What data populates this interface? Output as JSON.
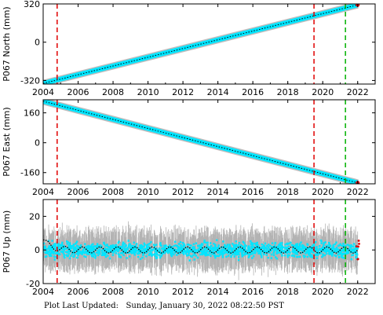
{
  "footer": {
    "label": "Plot Last Updated:",
    "timestamp": "Sunday, January 30, 2022 08:22:50 PST"
  },
  "chart_data": [
    {
      "type": "scatter",
      "ylabel": "P067 North (mm)",
      "xlim": [
        2004.0,
        2023.0
      ],
      "ylim": [
        -350,
        320
      ],
      "xticks": [
        2004,
        2006,
        2008,
        2010,
        2012,
        2014,
        2016,
        2018,
        2020,
        2022
      ],
      "yticks": [
        -320,
        0,
        320
      ],
      "grid": false,
      "series": [
        {
          "role": "daily positions",
          "color": "#00e5ff",
          "x": [
            2004.0,
            2022.0
          ],
          "y": [
            -345,
            312
          ]
        },
        {
          "role": "trend",
          "color": "#000000",
          "x": [
            2004.0,
            2022.0
          ],
          "y": [
            -345,
            312
          ]
        }
      ],
      "red_vlines": [
        2004.8,
        2019.5
      ],
      "green_vlines": [
        2021.3
      ]
    },
    {
      "type": "scatter",
      "ylabel": "P067 East (mm)",
      "xlim": [
        2004.0,
        2023.0
      ],
      "ylim": [
        -220,
        230
      ],
      "xticks": [
        2004,
        2006,
        2008,
        2010,
        2012,
        2014,
        2016,
        2018,
        2020,
        2022
      ],
      "yticks": [
        -160,
        0,
        160
      ],
      "grid": false,
      "series": [
        {
          "role": "daily positions",
          "color": "#00e5ff",
          "x": [
            2004.0,
            2022.0
          ],
          "y": [
            222,
            -215
          ]
        },
        {
          "role": "trend",
          "color": "#000000",
          "x": [
            2004.0,
            2022.0
          ],
          "y": [
            222,
            -215
          ]
        }
      ],
      "red_vlines": [
        2004.8,
        2019.5
      ],
      "green_vlines": [
        2021.3
      ]
    },
    {
      "type": "scatter",
      "ylabel": "P067 Up (mm)",
      "xlim": [
        2004.0,
        2023.0
      ],
      "ylim": [
        -20,
        30
      ],
      "xticks": [
        2004,
        2006,
        2008,
        2010,
        2012,
        2014,
        2016,
        2018,
        2020,
        2022
      ],
      "yticks": [
        -20,
        0,
        20
      ],
      "grid": false,
      "series": [
        {
          "role": "daily positions",
          "color": "#00e5ff",
          "mean": 0,
          "spread": 6
        },
        {
          "role": "error bars",
          "color": "#b3b3b3",
          "spread": 12
        },
        {
          "role": "annual trend",
          "color": "#000000",
          "amplitude": 1.8,
          "x": [
            2004.0,
            2022.0
          ],
          "start_offset": 6
        }
      ],
      "red_vlines": [
        2004.8,
        2019.5
      ],
      "green_vlines": [
        2021.3
      ]
    }
  ]
}
